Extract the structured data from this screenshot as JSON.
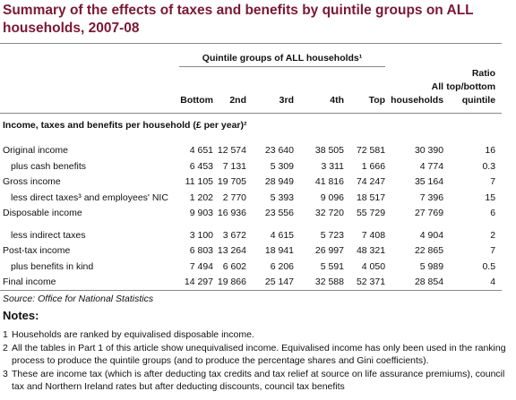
{
  "title": "Summary of the effects of taxes and benefits by quintile groups on ALL households, 2007-08",
  "table": {
    "group_header": "Quintile groups of ALL households¹",
    "columns": [
      "Bottom",
      "2nd",
      "3rd",
      "4th",
      "Top",
      "All households",
      "Ratio top/bottom quintile"
    ],
    "row_header": "Income, taxes and benefits per household (£ per year)²",
    "rows": [
      [
        "Original income",
        "4 651",
        "12 574",
        "23 640",
        "38 505",
        "72 581",
        "30 390",
        "16"
      ],
      [
        "plus cash benefits",
        "6 453",
        "7 131",
        "5 309",
        "3 311",
        "1 666",
        "4 774",
        "0.3"
      ],
      [
        "Gross income",
        "11 105",
        "19 705",
        "28 949",
        "41 816",
        "74 247",
        "35 164",
        "7"
      ],
      [
        "less direct taxes³ and employees' NIC",
        "1 202",
        "2 770",
        "5 393",
        "9 096",
        "18 517",
        "7 396",
        "15"
      ],
      [
        "Disposable income",
        "9 903",
        "16 936",
        "23 556",
        "32 720",
        "55 729",
        "27 769",
        "6"
      ],
      [
        "less indirect taxes",
        "3 100",
        "3 672",
        "4 615",
        "5 723",
        "7 408",
        "4 904",
        "2"
      ],
      [
        "Post-tax income",
        "6 803",
        "13 264",
        "18 941",
        "26 997",
        "48 321",
        "22 865",
        "7"
      ],
      [
        "plus benefits in kind",
        "7 494",
        "6 602",
        "6 206",
        "5 591",
        "4 050",
        "5 989",
        "0.5"
      ],
      [
        "Final income",
        "14 297",
        "19 866",
        "25 147",
        "32 588",
        "52 371",
        "28 854",
        "4"
      ]
    ]
  },
  "source": "Source: Office for National Statistics",
  "notes_heading": "Notes:",
  "notes": [
    {
      "number": "1",
      "text": "Households are ranked by equivalised disposable income."
    },
    {
      "number": "2",
      "text": "All the tables in Part 1 of this article show unequivalised income. Equivalised income has only been used in the ranking process to produce the quintile groups (and to produce the percentage shares and Gini coefficients)."
    },
    {
      "number": "3",
      "text": "These are income tax (which is after deducting tax credits and tax relief at source on life assurance premiums), council tax and Northern Ireland rates but after deducting discounts, council tax benefits"
    }
  ]
}
